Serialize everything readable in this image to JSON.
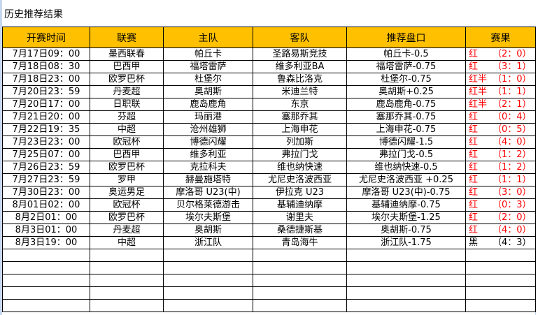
{
  "title": "历史推荐结果",
  "colors": {
    "header_bg": "#ffc000",
    "win": "#ff0000",
    "loss": "#000000"
  },
  "columns": [
    "开赛时间",
    "联赛",
    "主队",
    "客队",
    "推荐盘口",
    "赛果"
  ],
  "rows": [
    {
      "time": "7月17日09：00",
      "league": "墨西联春",
      "home": "帕丘卡",
      "away": "圣路易斯竞技",
      "pick": "帕丘卡-0.5",
      "result": "红",
      "score": "（2：0）",
      "win": true
    },
    {
      "time": "7月18日08：30",
      "league": "巴西甲",
      "home": "福塔雷萨",
      "away": "维多利亚BA",
      "pick": "福塔雷萨-0.75",
      "result": "红",
      "score": "（3：1）",
      "win": true
    },
    {
      "time": "7月18日23：00",
      "league": "欧罗巴杯",
      "home": "杜堡尔",
      "away": "鲁森比洛克",
      "pick": "杜堡尔-0.75",
      "result": "红半",
      "score": "（1：0）",
      "win": true
    },
    {
      "time": "7月20日23：59",
      "league": "丹麦超",
      "home": "奥胡斯",
      "away": "米迪兰特",
      "pick": "奥胡斯+0.25",
      "result": "红半",
      "score": "（1：1）",
      "win": true
    },
    {
      "time": "7月20日17：00",
      "league": "日职联",
      "home": "鹿岛鹿角",
      "away": "东京",
      "pick": "鹿岛鹿角-0.75",
      "result": "红半",
      "score": "（2：1）",
      "win": true
    },
    {
      "time": "7月21日20：00",
      "league": "芬超",
      "home": "玛丽港",
      "away": "塞那乔其",
      "pick": "塞那乔其-0.75",
      "result": "红",
      "score": "（0：4）",
      "win": true
    },
    {
      "time": "7月22日19：35",
      "league": "中超",
      "home": "沧州雄狮",
      "away": "上海申花",
      "pick": "上海申花-0.75",
      "result": "红",
      "score": "（0：5）",
      "win": true
    },
    {
      "time": "7月23日23：00",
      "league": "欧冠杯",
      "home": "博德闪耀",
      "away": "列加斯",
      "pick": "博德闪耀-1.5",
      "result": "红",
      "score": "（4：0）",
      "win": true
    },
    {
      "time": "7月25日07：00",
      "league": "巴西甲",
      "home": "维多利亚",
      "away": "弗拉门戈",
      "pick": "弗拉门戈-0.5",
      "result": "红",
      "score": "（1：2）",
      "win": true
    },
    {
      "time": "7月26日23：59",
      "league": "欧罗巴杯",
      "home": "克拉科夫",
      "away": "维也纳快速",
      "pick": "维也纳快速-0.5",
      "result": "红",
      "score": "（1：2）",
      "win": true
    },
    {
      "time": "7月27日23：59",
      "league": "罗甲",
      "home": "赫曼施塔特",
      "away": "尤尼史洛波西亚",
      "pick": "尤尼史洛波西亚 +0.25",
      "result": "红",
      "score": "（1：1）",
      "win": true
    },
    {
      "time": "7月30日23：00",
      "league": "奥运男足",
      "home": "摩洛哥 U23(中)",
      "away": "伊拉克 U23",
      "pick": "摩洛哥 U23(中)-0.75",
      "result": "红",
      "score": "（3：0）",
      "win": true
    },
    {
      "time": "8月01日02：00",
      "league": "欧冠杯",
      "home": "贝尔格莱德游击",
      "away": "基辅迪纳摩",
      "pick": "基辅迪纳摩-0.75",
      "result": "红",
      "score": "（0：3）",
      "win": true
    },
    {
      "time": "8月2日01：00",
      "league": "欧罗巴杯",
      "home": "埃尔夫斯堡",
      "away": "谢里夫",
      "pick": "埃尔夫斯堡-1.25",
      "result": "红",
      "score": "（2：0）",
      "win": true
    },
    {
      "time": "8月3日01：00",
      "league": "丹麦超",
      "home": "奥胡斯",
      "away": "桑德捷斯基",
      "pick": "奥胡斯-0.75",
      "result": "红",
      "score": "（4：0）",
      "win": true
    },
    {
      "time": "8月3日19：00",
      "league": "中超",
      "home": "浙江队",
      "away": "青岛海牛",
      "pick": "浙江队-1.75",
      "result": "黑",
      "score": "（4：3）",
      "win": false
    }
  ]
}
